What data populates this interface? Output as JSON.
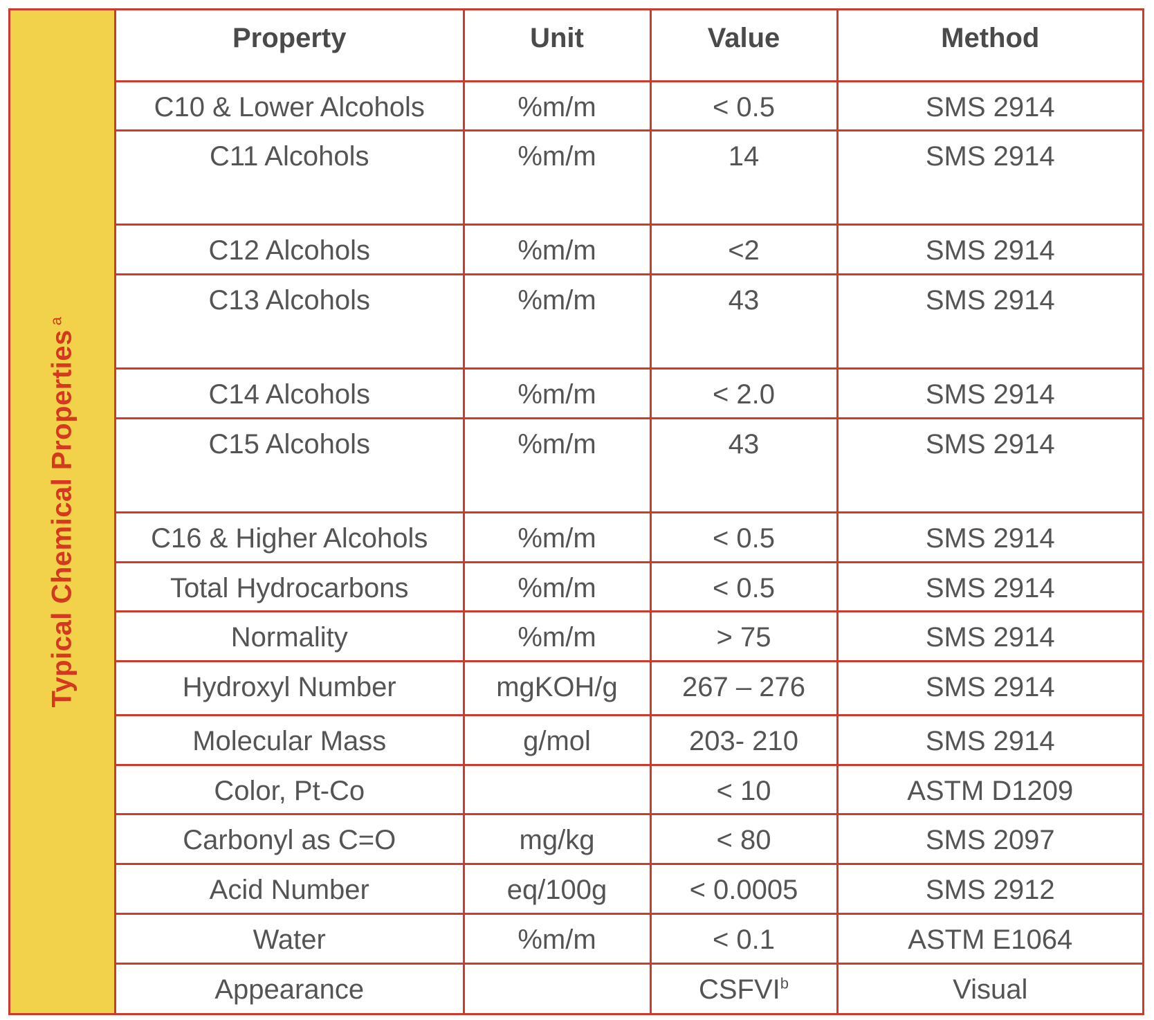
{
  "side_title": "Typical Chemical Properties",
  "side_title_note": "a",
  "columns": [
    "Property",
    "Unit",
    "Value",
    "Method"
  ],
  "rows": [
    {
      "property": "C10 & Lower Alcohols",
      "unit": "%m/m",
      "value": "< 0.5",
      "method": "SMS 2914",
      "height": "short"
    },
    {
      "property": "C11 Alcohols",
      "unit": "%m/m",
      "value": "14",
      "method": "SMS 2914",
      "height": "tall"
    },
    {
      "property": "C12 Alcohols",
      "unit": "%m/m",
      "value": "<2",
      "method": "SMS 2914",
      "height": "short"
    },
    {
      "property": "C13 Alcohols",
      "unit": "%m/m",
      "value": "43",
      "method": "SMS 2914",
      "height": "tall"
    },
    {
      "property": "C14 Alcohols",
      "unit": "%m/m",
      "value": "< 2.0",
      "method": "SMS 2914",
      "height": "short"
    },
    {
      "property": "C15 Alcohols",
      "unit": "%m/m",
      "value": "43",
      "method": "SMS 2914",
      "height": "tall"
    },
    {
      "property": "C16 & Higher Alcohols",
      "unit": "%m/m",
      "value": "< 0.5",
      "method": "SMS 2914",
      "height": "short"
    },
    {
      "property": "Total Hydrocarbons",
      "unit": "%m/m",
      "value": "< 0.5",
      "method": "SMS 2914",
      "height": "short"
    },
    {
      "property": "Normality",
      "unit": "%m/m",
      "value": "> 75",
      "method": "SMS 2914",
      "height": "short"
    },
    {
      "property": "Hydroxyl Number",
      "unit": "mgKOH/g",
      "value": "267 – 276",
      "method": "SMS 2914",
      "height": "mid"
    },
    {
      "property": "Molecular Mass",
      "unit": "g/mol",
      "value": "203- 210",
      "method": "SMS 2914",
      "height": "short"
    },
    {
      "property": "Color, Pt-Co",
      "unit": "",
      "value": "< 10",
      "method": "ASTM D1209",
      "height": "short"
    },
    {
      "property": "Carbonyl as C=O",
      "unit": "mg/kg",
      "value": "< 80",
      "method": "SMS 2097",
      "height": "short"
    },
    {
      "property": "Acid Number",
      "unit": "eq/100g",
      "value": "< 0.0005",
      "method": "SMS 2912",
      "height": "short"
    },
    {
      "property": "Water",
      "unit": "%m/m",
      "value": "< 0.1",
      "method": "ASTM E1064",
      "height": "short"
    },
    {
      "property": "Appearance",
      "unit": "",
      "value": "CSFVI",
      "value_note": "b",
      "method": "Visual",
      "height": "short"
    }
  ],
  "colors": {
    "border": "#cf3b2b",
    "side_panel": "#f1d24a",
    "side_title": "#d4391f",
    "text": "#545454"
  }
}
